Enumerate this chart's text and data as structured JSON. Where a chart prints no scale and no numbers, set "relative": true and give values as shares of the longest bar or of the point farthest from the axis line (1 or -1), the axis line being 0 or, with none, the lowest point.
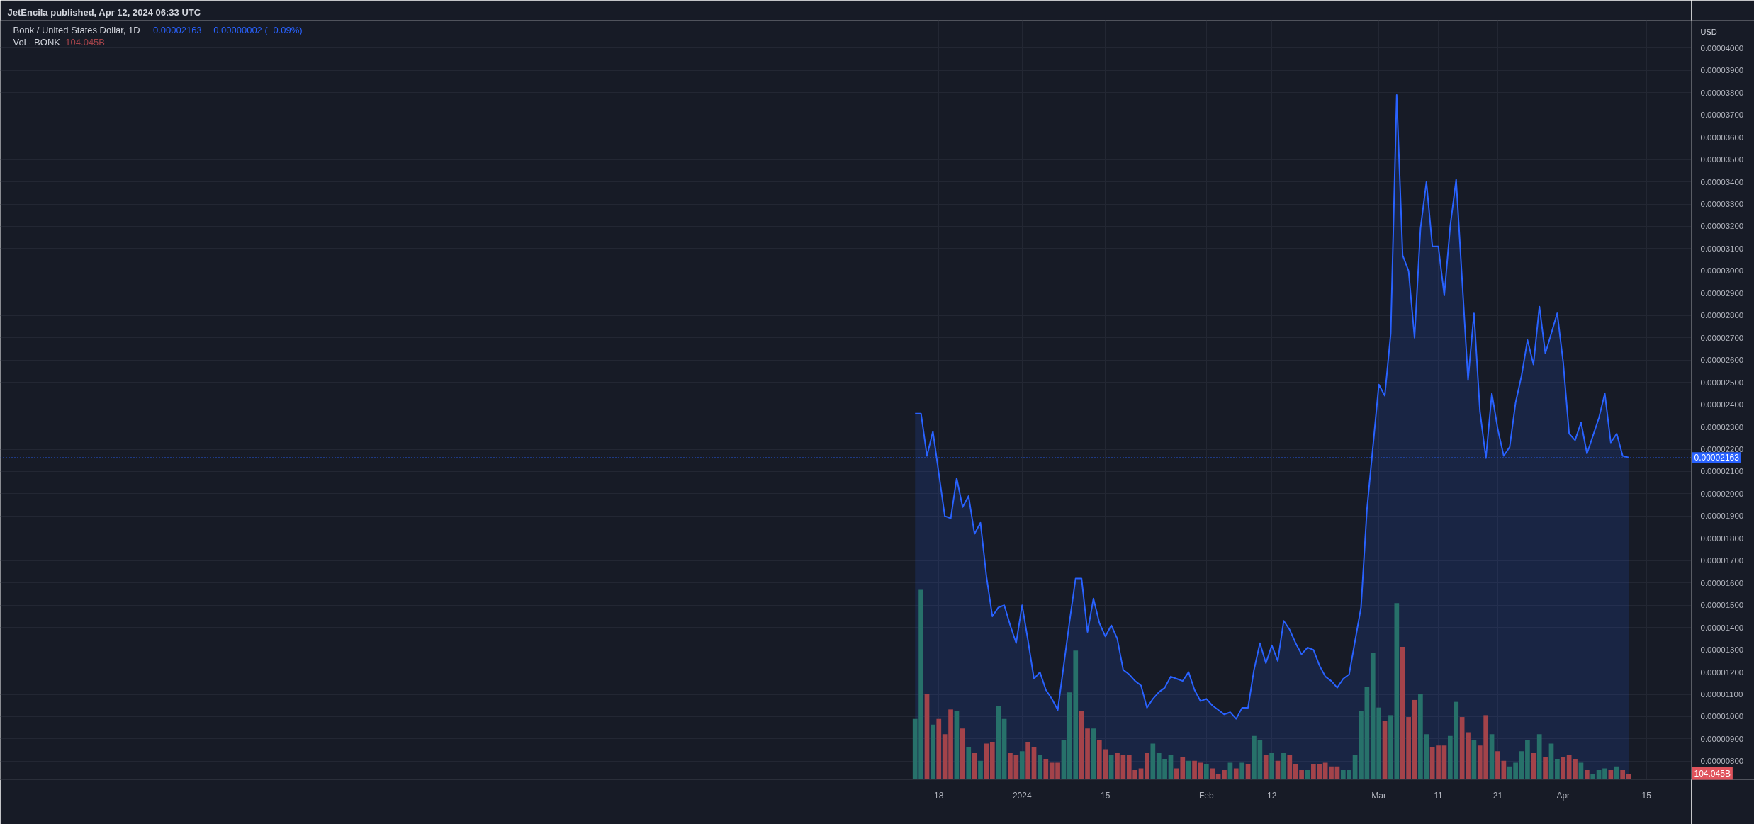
{
  "chart_data": [
    {
      "type": "area",
      "title": "Bonk / United States Dollar, 1D",
      "ylabel": "USD",
      "annotations": [
        "JetEncila published, Apr 12, 2024 06:33 UTC",
        "0.00002163",
        "−0.00000002 (−0.09%)"
      ],
      "x": [
        "2023-12-14",
        "2023-12-15",
        "2023-12-16",
        "2023-12-17",
        "2023-12-18",
        "2023-12-19",
        "2023-12-20",
        "2023-12-21",
        "2023-12-22",
        "2023-12-23",
        "2023-12-24",
        "2023-12-25",
        "2023-12-26",
        "2023-12-27",
        "2023-12-28",
        "2023-12-29",
        "2023-12-30",
        "2023-12-31",
        "2024-01-01",
        "2024-01-02",
        "2024-01-03",
        "2024-01-04",
        "2024-01-05",
        "2024-01-06",
        "2024-01-07",
        "2024-01-08",
        "2024-01-09",
        "2024-01-10",
        "2024-01-11",
        "2024-01-12",
        "2024-01-13",
        "2024-01-14",
        "2024-01-15",
        "2024-01-16",
        "2024-01-17",
        "2024-01-18",
        "2024-01-19",
        "2024-01-20",
        "2024-01-21",
        "2024-01-22",
        "2024-01-23",
        "2024-01-24",
        "2024-01-25",
        "2024-01-26",
        "2024-01-27",
        "2024-01-28",
        "2024-01-29",
        "2024-01-30",
        "2024-01-31",
        "2024-02-01",
        "2024-02-02",
        "2024-02-03",
        "2024-02-04",
        "2024-02-05",
        "2024-02-06",
        "2024-02-07",
        "2024-02-08",
        "2024-02-09",
        "2024-02-10",
        "2024-02-11",
        "2024-02-12",
        "2024-02-13",
        "2024-02-14",
        "2024-02-15",
        "2024-02-16",
        "2024-02-17",
        "2024-02-18",
        "2024-02-19",
        "2024-02-20",
        "2024-02-21",
        "2024-02-22",
        "2024-02-23",
        "2024-02-24",
        "2024-02-25",
        "2024-02-26",
        "2024-02-27",
        "2024-02-28",
        "2024-02-29",
        "2024-03-01",
        "2024-03-02",
        "2024-03-03",
        "2024-03-04",
        "2024-03-05",
        "2024-03-06",
        "2024-03-07",
        "2024-03-08",
        "2024-03-09",
        "2024-03-10",
        "2024-03-11",
        "2024-03-12",
        "2024-03-13",
        "2024-03-14",
        "2024-03-15",
        "2024-03-16",
        "2024-03-17",
        "2024-03-18",
        "2024-03-19",
        "2024-03-20",
        "2024-03-21",
        "2024-03-22",
        "2024-03-23",
        "2024-03-24",
        "2024-03-25",
        "2024-03-26",
        "2024-03-27",
        "2024-03-28",
        "2024-03-29",
        "2024-03-30",
        "2024-03-31",
        "2024-04-01",
        "2024-04-02",
        "2024-04-03",
        "2024-04-04",
        "2024-04-05",
        "2024-04-06",
        "2024-04-07",
        "2024-04-08",
        "2024-04-09",
        "2024-04-10",
        "2024-04-11",
        "2024-04-12"
      ],
      "series": [
        {
          "color": "#2962ff",
          "values": [
            2.36e-05,
            2.36e-05,
            2.17e-05,
            2.28e-05,
            2.09e-05,
            1.9e-05,
            1.89e-05,
            2.07e-05,
            1.94e-05,
            1.99e-05,
            1.82e-05,
            1.87e-05,
            1.63e-05,
            1.45e-05,
            1.49e-05,
            1.5e-05,
            1.41e-05,
            1.33e-05,
            1.5e-05,
            1.34e-05,
            1.17e-05,
            1.2e-05,
            1.12e-05,
            1.08e-05,
            1.03e-05,
            1.23e-05,
            1.43e-05,
            1.62e-05,
            1.62e-05,
            1.38e-05,
            1.53e-05,
            1.42e-05,
            1.36e-05,
            1.41e-05,
            1.35e-05,
            1.21e-05,
            1.19e-05,
            1.16e-05,
            1.14e-05,
            1.04e-05,
            1.08e-05,
            1.11e-05,
            1.13e-05,
            1.18e-05,
            1.17e-05,
            1.16e-05,
            1.2e-05,
            1.12e-05,
            1.07e-05,
            1.08e-05,
            1.05e-05,
            1.03e-05,
            1.01e-05,
            1.02e-05,
            9.9e-06,
            1.04e-05,
            1.04e-05,
            1.21e-05,
            1.33e-05,
            1.24e-05,
            1.32e-05,
            1.25e-05,
            1.43e-05,
            1.39e-05,
            1.33e-05,
            1.28e-05,
            1.31e-05,
            1.3e-05,
            1.23e-05,
            1.18e-05,
            1.16e-05,
            1.13e-05,
            1.17e-05,
            1.19e-05,
            1.34e-05,
            1.49e-05,
            1.93e-05,
            2.21e-05,
            2.49e-05,
            2.44e-05,
            2.72e-05,
            3.79e-05,
            3.07e-05,
            3e-05,
            2.7e-05,
            3.19e-05,
            3.4e-05,
            3.11e-05,
            3.11e-05,
            2.89e-05,
            3.2e-05,
            3.41e-05,
            2.96e-05,
            2.51e-05,
            2.81e-05,
            2.37e-05,
            2.16e-05,
            2.45e-05,
            2.29e-05,
            2.17e-05,
            2.21e-05,
            2.41e-05,
            2.53e-05,
            2.69e-05,
            2.58e-05,
            2.84e-05,
            2.63e-05,
            2.72e-05,
            2.81e-05,
            2.59e-05,
            2.27e-05,
            2.24e-05,
            2.32e-05,
            2.18e-05,
            2.26e-05,
            2.34e-05,
            2.45e-05,
            2.23e-05,
            2.27e-05,
            2.17e-05,
            2.163e-05
          ]
        }
      ],
      "xlim": [
        "2023-07-13T04:00",
        "2024-04-22T13:00"
      ],
      "xticks": [
        {
          "value": "2023-12-18",
          "label": "18"
        },
        {
          "value": "2024-01-01",
          "label": "2024"
        },
        {
          "value": "2024-01-15",
          "label": "15"
        },
        {
          "value": "2024-02-01",
          "label": "Feb"
        },
        {
          "value": "2024-02-12",
          "label": "12"
        },
        {
          "value": "2024-03-01",
          "label": "Mar"
        },
        {
          "value": "2024-03-11",
          "label": "11"
        },
        {
          "value": "2024-03-21",
          "label": "21"
        },
        {
          "value": "2024-04-01",
          "label": "Apr"
        },
        {
          "value": "2024-04-15",
          "label": "15"
        }
      ],
      "ylim": [
        7.17e-06,
        4.125e-05
      ],
      "yticks": [
        {
          "value": 8e-06,
          "label": "0.00000800"
        },
        {
          "value": 9e-06,
          "label": "0.00000900"
        },
        {
          "value": 1e-05,
          "label": "0.00001000"
        },
        {
          "value": 1.1e-05,
          "label": "0.00001100"
        },
        {
          "value": 1.2e-05,
          "label": "0.00001200"
        },
        {
          "value": 1.3e-05,
          "label": "0.00001300"
        },
        {
          "value": 1.4e-05,
          "label": "0.00001400"
        },
        {
          "value": 1.5e-05,
          "label": "0.00001500"
        },
        {
          "value": 1.6e-05,
          "label": "0.00001600"
        },
        {
          "value": 1.7e-05,
          "label": "0.00001700"
        },
        {
          "value": 1.8e-05,
          "label": "0.00001800"
        },
        {
          "value": 1.9e-05,
          "label": "0.00001900"
        },
        {
          "value": 2e-05,
          "label": "0.00002000"
        },
        {
          "value": 2.1e-05,
          "label": "0.00002100"
        },
        {
          "value": 2.2e-05,
          "label": "0.00002200"
        },
        {
          "value": 2.3e-05,
          "label": "0.00002300"
        },
        {
          "value": 2.4e-05,
          "label": "0.00002400"
        },
        {
          "value": 2.5e-05,
          "label": "0.00002500"
        },
        {
          "value": 2.6e-05,
          "label": "0.00002600"
        },
        {
          "value": 2.7e-05,
          "label": "0.00002700"
        },
        {
          "value": 2.8e-05,
          "label": "0.00002800"
        },
        {
          "value": 2.9e-05,
          "label": "0.00002900"
        },
        {
          "value": 3e-05,
          "label": "0.00003000"
        },
        {
          "value": 3.1e-05,
          "label": "0.00003100"
        },
        {
          "value": 3.2e-05,
          "label": "0.00003200"
        },
        {
          "value": 3.3e-05,
          "label": "0.00003300"
        },
        {
          "value": 3.4e-05,
          "label": "0.00003400"
        },
        {
          "value": 3.5e-05,
          "label": "0.00003500"
        },
        {
          "value": 3.6e-05,
          "label": "0.00003600"
        },
        {
          "value": 3.7e-05,
          "label": "0.00003700"
        },
        {
          "value": 3.8e-05,
          "label": "0.00003800"
        },
        {
          "value": 3.9e-05,
          "label": "0.00003900"
        },
        {
          "value": 4e-05,
          "label": "0.00004000"
        }
      ],
      "grid": true,
      "ref_lines": [
        {
          "axis": "y",
          "value": 2.163e-05,
          "label": "0.00002163",
          "color": "#2962ff",
          "line_style": "dotted"
        }
      ]
    },
    {
      "type": "bar",
      "title": "Vol · BONK",
      "relative": true,
      "annotations": [
        "104.045B",
        "104.045B"
      ],
      "x": [
        "2023-12-14",
        "2023-12-15",
        "2023-12-16",
        "2023-12-17",
        "2023-12-18",
        "2023-12-19",
        "2023-12-20",
        "2023-12-21",
        "2023-12-22",
        "2023-12-23",
        "2023-12-24",
        "2023-12-25",
        "2023-12-26",
        "2023-12-27",
        "2023-12-28",
        "2023-12-29",
        "2023-12-30",
        "2023-12-31",
        "2024-01-01",
        "2024-01-02",
        "2024-01-03",
        "2024-01-04",
        "2024-01-05",
        "2024-01-06",
        "2024-01-07",
        "2024-01-08",
        "2024-01-09",
        "2024-01-10",
        "2024-01-11",
        "2024-01-12",
        "2024-01-13",
        "2024-01-14",
        "2024-01-15",
        "2024-01-16",
        "2024-01-17",
        "2024-01-18",
        "2024-01-19",
        "2024-01-20",
        "2024-01-21",
        "2024-01-22",
        "2024-01-23",
        "2024-01-24",
        "2024-01-25",
        "2024-01-26",
        "2024-01-27",
        "2024-01-28",
        "2024-01-29",
        "2024-01-30",
        "2024-01-31",
        "2024-02-01",
        "2024-02-02",
        "2024-02-03",
        "2024-02-04",
        "2024-02-05",
        "2024-02-06",
        "2024-02-07",
        "2024-02-08",
        "2024-02-09",
        "2024-02-10",
        "2024-02-11",
        "2024-02-12",
        "2024-02-13",
        "2024-02-14",
        "2024-02-15",
        "2024-02-16",
        "2024-02-17",
        "2024-02-18",
        "2024-02-19",
        "2024-02-20",
        "2024-02-21",
        "2024-02-22",
        "2024-02-23",
        "2024-02-24",
        "2024-02-25",
        "2024-02-26",
        "2024-02-27",
        "2024-02-28",
        "2024-02-29",
        "2024-03-01",
        "2024-03-02",
        "2024-03-03",
        "2024-03-04",
        "2024-03-05",
        "2024-03-06",
        "2024-03-07",
        "2024-03-08",
        "2024-03-09",
        "2024-03-10",
        "2024-03-11",
        "2024-03-12",
        "2024-03-13",
        "2024-03-14",
        "2024-03-15",
        "2024-03-16",
        "2024-03-17",
        "2024-03-18",
        "2024-03-19",
        "2024-03-20",
        "2024-03-21",
        "2024-03-22",
        "2024-03-23",
        "2024-03-24",
        "2024-03-25",
        "2024-03-26",
        "2024-03-27",
        "2024-03-28",
        "2024-03-29",
        "2024-03-30",
        "2024-03-31",
        "2024-04-01",
        "2024-04-02",
        "2024-04-03",
        "2024-04-04",
        "2024-04-05",
        "2024-04-06",
        "2024-04-07",
        "2024-04-08",
        "2024-04-09",
        "2024-04-10",
        "2024-04-11",
        "2024-04-12"
      ],
      "values": [
        0.32,
        1,
        0.45,
        0.29,
        0.32,
        0.24,
        0.37,
        0.36,
        0.27,
        0.17,
        0.14,
        0.1,
        0.19,
        0.2,
        0.39,
        0.32,
        0.14,
        0.13,
        0.15,
        0.2,
        0.17,
        0.13,
        0.11,
        0.09,
        0.09,
        0.21,
        0.46,
        0.68,
        0.36,
        0.27,
        0.27,
        0.21,
        0.16,
        0.13,
        0.14,
        0.13,
        0.13,
        0.05,
        0.06,
        0.14,
        0.19,
        0.14,
        0.11,
        0.13,
        0.06,
        0.12,
        0.1,
        0.1,
        0.09,
        0.08,
        0.06,
        0.03,
        0.05,
        0.09,
        0.06,
        0.09,
        0.08,
        0.23,
        0.21,
        0.13,
        0.14,
        0.1,
        0.14,
        0.13,
        0.08,
        0.05,
        0.05,
        0.08,
        0.08,
        0.09,
        0.07,
        0.07,
        0.05,
        0.05,
        0.13,
        0.36,
        0.49,
        0.67,
        0.38,
        0.31,
        0.34,
        0.93,
        0.7,
        0.33,
        0.42,
        0.45,
        0.24,
        0.17,
        0.18,
        0.18,
        0.23,
        0.41,
        0.33,
        0.25,
        0.21,
        0.18,
        0.34,
        0.24,
        0.15,
        0.1,
        0.07,
        0.09,
        0.15,
        0.21,
        0.14,
        0.24,
        0.12,
        0.19,
        0.11,
        0.12,
        0.13,
        0.11,
        0.09,
        0.05,
        0.03,
        0.05,
        0.06,
        0.05,
        0.07,
        0.05,
        0.03
      ],
      "colors": [
        "#27716a",
        "#27716a",
        "#a3434a",
        "#27716a",
        "#a3434a",
        "#a3434a",
        "#a3434a",
        "#27716a",
        "#a3434a",
        "#27716a",
        "#a3434a",
        "#27716a",
        "#a3434a",
        "#a3434a",
        "#27716a",
        "#27716a",
        "#a3434a",
        "#a3434a",
        "#27716a",
        "#a3434a",
        "#a3434a",
        "#27716a",
        "#a3434a",
        "#a3434a",
        "#a3434a",
        "#27716a",
        "#27716a",
        "#27716a",
        "#a3434a",
        "#a3434a",
        "#27716a",
        "#a3434a",
        "#a3434a",
        "#27716a",
        "#a3434a",
        "#a3434a",
        "#a3434a",
        "#a3434a",
        "#a3434a",
        "#a3434a",
        "#27716a",
        "#27716a",
        "#27716a",
        "#27716a",
        "#a3434a",
        "#a3434a",
        "#27716a",
        "#a3434a",
        "#a3434a",
        "#27716a",
        "#a3434a",
        "#a3434a",
        "#a3434a",
        "#27716a",
        "#a3434a",
        "#27716a",
        "#a3434a",
        "#27716a",
        "#27716a",
        "#a3434a",
        "#27716a",
        "#a3434a",
        "#27716a",
        "#a3434a",
        "#a3434a",
        "#a3434a",
        "#27716a",
        "#a3434a",
        "#a3434a",
        "#a3434a",
        "#a3434a",
        "#a3434a",
        "#27716a",
        "#27716a",
        "#27716a",
        "#27716a",
        "#27716a",
        "#27716a",
        "#27716a",
        "#a3434a",
        "#27716a",
        "#27716a",
        "#a3434a",
        "#a3434a",
        "#a3434a",
        "#27716a",
        "#27716a",
        "#a3434a",
        "#a3434a",
        "#a3434a",
        "#27716a",
        "#27716a",
        "#a3434a",
        "#a3434a",
        "#27716a",
        "#a3434a",
        "#a3434a",
        "#27716a",
        "#a3434a",
        "#a3434a",
        "#27716a",
        "#27716a",
        "#27716a",
        "#27716a",
        "#a3434a",
        "#27716a",
        "#a3434a",
        "#27716a",
        "#27716a",
        "#a3434a",
        "#a3434a",
        "#a3434a",
        "#27716a",
        "#a3434a",
        "#27716a",
        "#27716a",
        "#27716a",
        "#a3434a",
        "#27716a",
        "#a3434a",
        "#a3434a"
      ],
      "xlim": [
        "2023-07-13T04:00",
        "2024-04-22T13:00"
      ]
    }
  ]
}
